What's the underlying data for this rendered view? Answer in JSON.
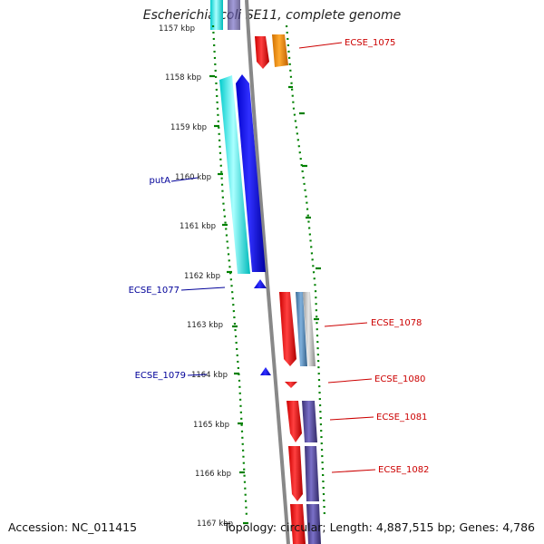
{
  "title": "Escherichia coli SE11, complete genome",
  "footer": {
    "accession": "Accession: NC_011415",
    "topology": "Topology: circular; Length: 4,887,515 bp; Genes: 4,786"
  },
  "ticks": [
    "1157 kbp",
    "1158 kbp",
    "1159 kbp",
    "1160 kbp",
    "1161 kbp",
    "1162 kbp",
    "1163 kbp",
    "1164 kbp",
    "1165 kbp",
    "1166 kbp",
    "1167 kbp"
  ],
  "genes_right": [
    "ECSE_1075",
    "ECSE_1078",
    "ECSE_1080",
    "ECSE_1081",
    "ECSE_1082"
  ],
  "genes_left": [
    "putA",
    "ECSE_1077",
    "ECSE_1079"
  ],
  "colors": {
    "forward_gene": "#ff0000",
    "reverse_gene": "#0000ff",
    "cds_cyan": "#00ffff",
    "orange": "#ff8c00",
    "steel_blue": "#4682b4",
    "slate": "#483d8b",
    "gray": "#aaaaaa",
    "backbone": "#888888",
    "gc_skew": "#008000",
    "label_right": "#cc0000",
    "label_left": "#000099"
  }
}
